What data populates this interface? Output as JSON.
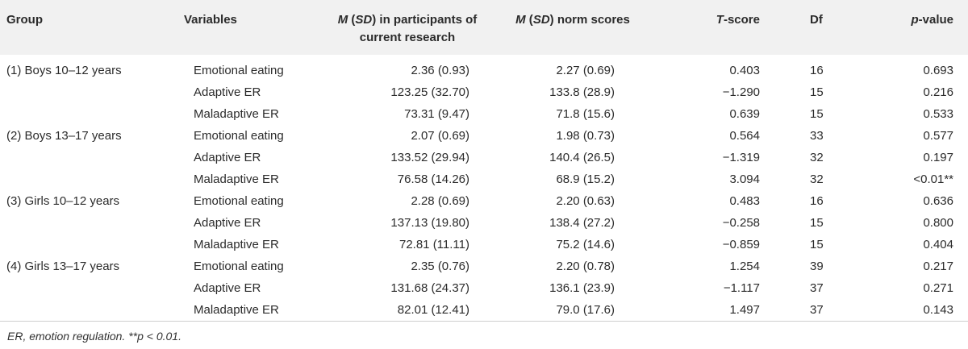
{
  "header": {
    "group": "Group",
    "variables": "Variables",
    "m_participants_em": "M",
    "m_participants_paren_open": " (",
    "m_participants_sd": "SD",
    "m_participants_rest": ") in participants of current research",
    "m_norm_em": "M",
    "m_norm_paren_open": " (",
    "m_norm_sd": "SD",
    "m_norm_rest": ") norm scores",
    "t_em": "T",
    "t_rest": "-score",
    "df": "Df",
    "p_em": "p",
    "p_rest": "-value"
  },
  "rows": [
    {
      "group": "(1) Boys 10–12 years",
      "variable": "Emotional eating",
      "m_current": "2.36 (0.93)",
      "m_norm": "2.27 (0.69)",
      "t": "0.403",
      "df": "16",
      "p": "0.693"
    },
    {
      "group": "",
      "variable": "Adaptive ER",
      "m_current": "123.25 (32.70)",
      "m_norm": "133.8 (28.9)",
      "t": "−1.290",
      "df": "15",
      "p": "0.216"
    },
    {
      "group": "",
      "variable": "Maladaptive ER",
      "m_current": "73.31 (9.47)",
      "m_norm": "71.8 (15.6)",
      "t": "0.639",
      "df": "15",
      "p": "0.533"
    },
    {
      "group": "(2) Boys 13–17 years",
      "variable": "Emotional eating",
      "m_current": "2.07 (0.69)",
      "m_norm": "1.98 (0.73)",
      "t": "0.564",
      "df": "33",
      "p": "0.577"
    },
    {
      "group": "",
      "variable": "Adaptive ER",
      "m_current": "133.52 (29.94)",
      "m_norm": "140.4 (26.5)",
      "t": "−1.319",
      "df": "32",
      "p": "0.197"
    },
    {
      "group": "",
      "variable": "Maladaptive ER",
      "m_current": "76.58 (14.26)",
      "m_norm": "68.9 (15.2)",
      "t": "3.094",
      "df": "32",
      "p": "<0.01**"
    },
    {
      "group": "(3) Girls 10–12 years",
      "variable": "Emotional eating",
      "m_current": "2.28 (0.69)",
      "m_norm": "2.20 (0.63)",
      "t": "0.483",
      "df": "16",
      "p": "0.636"
    },
    {
      "group": "",
      "variable": "Adaptive ER",
      "m_current": "137.13 (19.80)",
      "m_norm": "138.4 (27.2)",
      "t": "−0.258",
      "df": "15",
      "p": "0.800"
    },
    {
      "group": "",
      "variable": "Maladaptive ER",
      "m_current": "72.81 (11.11)",
      "m_norm": "75.2 (14.6)",
      "t": "−0.859",
      "df": "15",
      "p": "0.404"
    },
    {
      "group": "(4) Girls 13–17 years",
      "variable": "Emotional eating",
      "m_current": "2.35 (0.76)",
      "m_norm": "2.20 (0.78)",
      "t": "1.254",
      "df": "39",
      "p": "0.217"
    },
    {
      "group": "",
      "variable": "Adaptive ER",
      "m_current": "131.68 (24.37)",
      "m_norm": "136.1 (23.9)",
      "t": "−1.117",
      "df": "37",
      "p": "0.271"
    },
    {
      "group": "",
      "variable": "Maladaptive ER",
      "m_current": "82.01 (12.41)",
      "m_norm": "79.0 (17.6)",
      "t": "1.497",
      "df": "37",
      "p": "0.143"
    }
  ],
  "footnote": "ER, emotion regulation. **p < 0.01."
}
